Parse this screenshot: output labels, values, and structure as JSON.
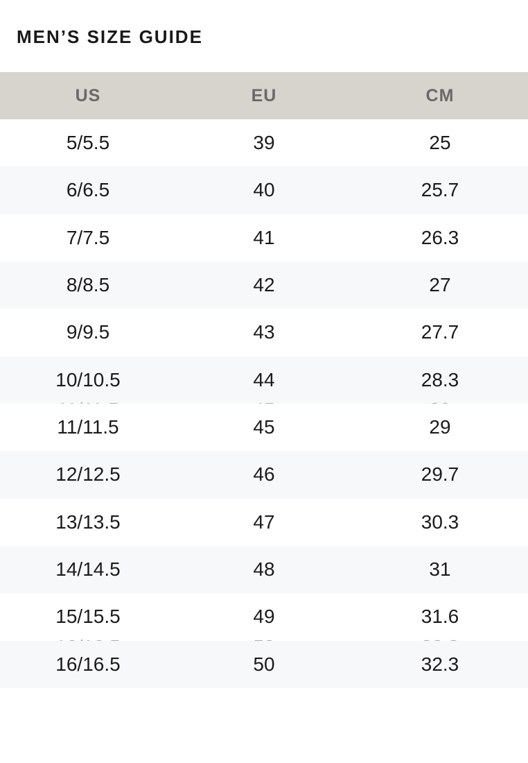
{
  "page": {
    "title": "MEN’S SIZE GUIDE"
  },
  "table": {
    "columns": [
      "US",
      "EU",
      "CM"
    ],
    "rows": [
      [
        "5/5.5",
        "39",
        "25"
      ],
      [
        "6/6.5",
        "40",
        "25.7"
      ],
      [
        "7/7.5",
        "41",
        "26.3"
      ],
      [
        "8/8.5",
        "42",
        "27"
      ],
      [
        "9/9.5",
        "43",
        "27.7"
      ],
      [
        "10/10.5",
        "44",
        "28.3"
      ],
      [
        "11/11.5",
        "45",
        "29"
      ],
      [
        "12/12.5",
        "46",
        "29.7"
      ],
      [
        "13/13.5",
        "47",
        "30.3"
      ],
      [
        "14/14.5",
        "48",
        "31"
      ],
      [
        "15/15.5",
        "49",
        "31.6"
      ],
      [
        "16/16.5",
        "50",
        "32.3"
      ]
    ],
    "render_artifacts": {
      "rows_with_clipped_text": [
        6,
        11
      ]
    }
  },
  "colors": {
    "background": "#ffffff",
    "title_text": "#191919",
    "header_bg": "#d7d4cd",
    "header_text": "#696969",
    "stripe_bg": "#f7f8fa",
    "body_text": "#1b1b1b",
    "artifact_text": "#aab0b5"
  }
}
